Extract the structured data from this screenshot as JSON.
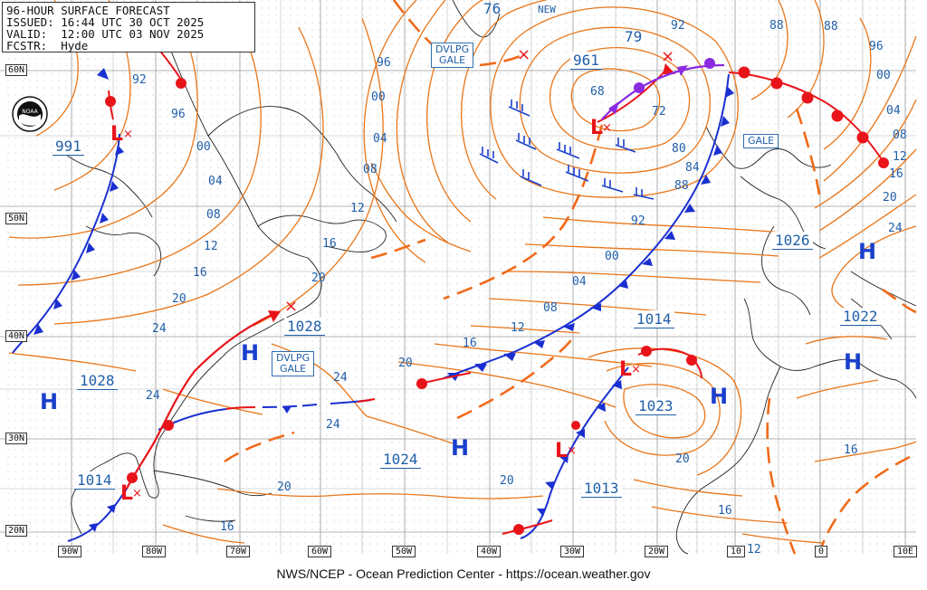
{
  "header": {
    "title": "96-HOUR SURFACE FORECAST",
    "issued": "ISSUED: 16:44 UTC 30 OCT 2025",
    "valid": "VALID:  12:00 UTC 03 NOV 2025",
    "forecaster": "FCSTR:  Hyde"
  },
  "footer": "NWS/NCEP - Ocean Prediction Center - https://ocean.weather.gov",
  "logo_text": "NOAA",
  "lat_labels": [
    "60N",
    "50N",
    "40N",
    "30N",
    "20N"
  ],
  "lon_labels": [
    "90W",
    "80W",
    "70W",
    "60W",
    "50W",
    "40W",
    "30W",
    "20W",
    "10",
    "0",
    "10E"
  ],
  "warnings": [
    {
      "line1": "DVLPG",
      "line2": "GALE"
    },
    {
      "line1": "DVLPG",
      "line2": "GALE"
    },
    {
      "line1": "GALE",
      "line2": ""
    }
  ],
  "pressure_centers": [
    {
      "type": "L",
      "value": "991"
    },
    {
      "type": "L",
      "value": "961"
    },
    {
      "type": "H",
      "value": "1028"
    },
    {
      "type": "H",
      "value": "1028"
    },
    {
      "type": "H",
      "value": "1026"
    },
    {
      "type": "H",
      "value": "1022"
    },
    {
      "type": "H",
      "value": "1024"
    },
    {
      "type": "H",
      "value": "1023"
    },
    {
      "type": "L",
      "value": "1014"
    },
    {
      "type": "L",
      "value": "1013"
    },
    {
      "type": "L",
      "value": "1014"
    }
  ],
  "isobar_labels": [
    "92",
    "96",
    "00",
    "04",
    "08",
    "12",
    "16",
    "20",
    "24",
    "24",
    "20",
    "16",
    "12",
    "08",
    "04",
    "00",
    "96",
    "92",
    "88",
    "84",
    "80",
    "72",
    "68",
    "76",
    "79",
    "96",
    "88",
    "00",
    "04",
    "08",
    "12",
    "16",
    "20",
    "24",
    "20",
    "16",
    "12",
    "20",
    "16",
    "24",
    "24",
    "20",
    "16",
    "20",
    "12",
    "16",
    "08",
    "04",
    "00",
    "92",
    "88"
  ],
  "misc_text": [
    "NEW"
  ],
  "colors": {
    "isobar": "#e8761a",
    "cold_front": "#1a2fd0",
    "warm_front": "#e8141a",
    "occluded_front": "#8a2be2",
    "trough": "#f06a1a",
    "coast": "#222222",
    "grid": "#9a9a9a",
    "labels": "#1f5fa8"
  }
}
